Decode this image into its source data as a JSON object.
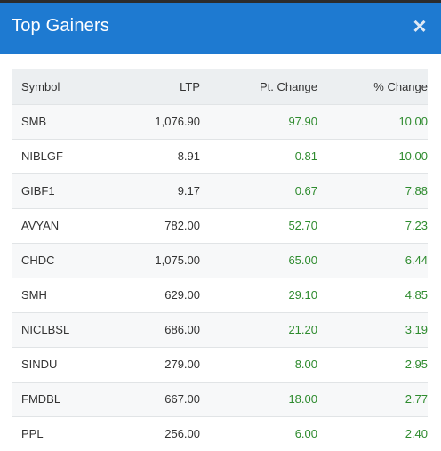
{
  "modal": {
    "title": "Top Gainers",
    "close_label": "×"
  },
  "table": {
    "headers": {
      "symbol": "Symbol",
      "ltp": "LTP",
      "pt_change": "Pt. Change",
      "pct_change": "% Change"
    },
    "rows": [
      {
        "symbol": "SMB",
        "ltp": "1,076.90",
        "pt_change": "97.90",
        "pct_change": "10.00"
      },
      {
        "symbol": "NIBLGF",
        "ltp": "8.91",
        "pt_change": "0.81",
        "pct_change": "10.00"
      },
      {
        "symbol": "GIBF1",
        "ltp": "9.17",
        "pt_change": "0.67",
        "pct_change": "7.88"
      },
      {
        "symbol": "AVYAN",
        "ltp": "782.00",
        "pt_change": "52.70",
        "pct_change": "7.23"
      },
      {
        "symbol": "CHDC",
        "ltp": "1,075.00",
        "pt_change": "65.00",
        "pct_change": "6.44"
      },
      {
        "symbol": "SMH",
        "ltp": "629.00",
        "pt_change": "29.10",
        "pct_change": "4.85"
      },
      {
        "symbol": "NICLBSL",
        "ltp": "686.00",
        "pt_change": "21.20",
        "pct_change": "3.19"
      },
      {
        "symbol": "SINDU",
        "ltp": "279.00",
        "pt_change": "8.00",
        "pct_change": "2.95"
      },
      {
        "symbol": "FMDBL",
        "ltp": "667.00",
        "pt_change": "18.00",
        "pct_change": "2.77"
      },
      {
        "symbol": "PPL",
        "ltp": "256.00",
        "pt_change": "6.00",
        "pct_change": "2.40"
      }
    ]
  },
  "colors": {
    "header_bg": "#1e7ad1",
    "positive": "#2e8b2e"
  }
}
